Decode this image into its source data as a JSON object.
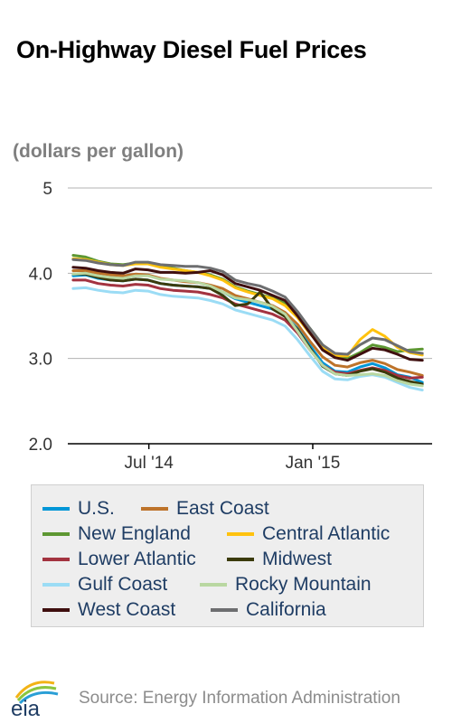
{
  "chart_data": {
    "type": "line",
    "title": "On-Highway Diesel Fuel Prices",
    "ylabel": "(dollars per gallon)",
    "ylim": [
      2.0,
      5.0
    ],
    "yticks": [
      "2.0",
      "3.0",
      "4.0",
      "5"
    ],
    "ytick_values": [
      2.0,
      3.0,
      4.0,
      5.0
    ],
    "xtick_labels": [
      "Jul '14",
      "Jan '15"
    ],
    "xtick_dates": [
      "2014-07-01",
      "2015-01-01"
    ],
    "xlim": [
      "2014-04-01",
      "2015-05-15"
    ],
    "grid": true,
    "legend_placement": "bottom",
    "x": [
      "2014-04-07",
      "2014-04-21",
      "2014-05-05",
      "2014-05-19",
      "2014-06-02",
      "2014-06-16",
      "2014-06-30",
      "2014-07-14",
      "2014-07-28",
      "2014-08-11",
      "2014-08-25",
      "2014-09-08",
      "2014-09-22",
      "2014-10-06",
      "2014-10-20",
      "2014-11-03",
      "2014-11-17",
      "2014-12-01",
      "2014-12-15",
      "2014-12-29",
      "2015-01-12",
      "2015-01-26",
      "2015-02-09",
      "2015-02-23",
      "2015-03-09",
      "2015-03-23",
      "2015-04-06",
      "2015-04-20",
      "2015-05-04"
    ],
    "series": [
      {
        "name": "U.S.",
        "color": "#0096d7",
        "values": [
          3.97,
          3.98,
          3.94,
          3.92,
          3.91,
          3.93,
          3.92,
          3.88,
          3.86,
          3.85,
          3.84,
          3.82,
          3.78,
          3.7,
          3.66,
          3.62,
          3.58,
          3.5,
          3.35,
          3.15,
          2.95,
          2.85,
          2.84,
          2.9,
          2.94,
          2.89,
          2.81,
          2.78,
          2.72
        ]
      },
      {
        "name": "East Coast",
        "color": "#bd732a",
        "values": [
          4.03,
          4.03,
          4.0,
          3.98,
          3.97,
          3.99,
          3.98,
          3.94,
          3.92,
          3.9,
          3.89,
          3.86,
          3.82,
          3.74,
          3.7,
          3.66,
          3.62,
          3.54,
          3.4,
          3.2,
          3.02,
          2.92,
          2.9,
          2.95,
          2.98,
          2.94,
          2.87,
          2.84,
          2.8
        ]
      },
      {
        "name": "New England",
        "color": "#5d9732",
        "values": [
          4.21,
          4.19,
          4.14,
          4.11,
          4.1,
          4.12,
          4.12,
          4.09,
          4.06,
          4.03,
          4.01,
          3.98,
          3.93,
          3.84,
          3.79,
          3.75,
          3.71,
          3.65,
          3.52,
          3.35,
          3.16,
          3.03,
          3.0,
          3.07,
          3.16,
          3.13,
          3.08,
          3.1,
          3.11
        ]
      },
      {
        "name": "Central Atlantic",
        "color": "#ffc20e",
        "values": [
          4.17,
          4.16,
          4.13,
          4.1,
          4.09,
          4.11,
          4.11,
          4.07,
          4.05,
          4.03,
          4.01,
          3.97,
          3.92,
          3.83,
          3.78,
          3.74,
          3.7,
          3.62,
          3.48,
          3.29,
          3.13,
          3.03,
          3.03,
          3.22,
          3.34,
          3.26,
          3.13,
          3.07,
          3.04
        ]
      },
      {
        "name": "Lower Atlantic",
        "color": "#a33340",
        "values": [
          3.92,
          3.92,
          3.88,
          3.86,
          3.85,
          3.87,
          3.86,
          3.82,
          3.8,
          3.79,
          3.78,
          3.75,
          3.71,
          3.64,
          3.6,
          3.56,
          3.52,
          3.45,
          3.3,
          3.1,
          2.92,
          2.84,
          2.82,
          2.86,
          2.89,
          2.86,
          2.8,
          2.77,
          2.78
        ]
      },
      {
        "name": "Midwest",
        "color": "#3b3b0c",
        "values": [
          3.99,
          3.99,
          3.95,
          3.92,
          3.91,
          3.93,
          3.92,
          3.88,
          3.86,
          3.85,
          3.84,
          3.82,
          3.74,
          3.62,
          3.64,
          3.78,
          3.58,
          3.49,
          3.34,
          3.12,
          2.91,
          2.82,
          2.8,
          2.85,
          2.88,
          2.84,
          2.77,
          2.73,
          2.7
        ]
      },
      {
        "name": "Gulf Coast",
        "color": "#9bdcf5",
        "values": [
          3.82,
          3.83,
          3.8,
          3.78,
          3.77,
          3.8,
          3.79,
          3.75,
          3.73,
          3.72,
          3.71,
          3.68,
          3.64,
          3.57,
          3.53,
          3.49,
          3.45,
          3.38,
          3.22,
          3.03,
          2.85,
          2.76,
          2.75,
          2.79,
          2.81,
          2.78,
          2.72,
          2.66,
          2.63
        ]
      },
      {
        "name": "Rocky Mountain",
        "color": "#b9d7a1",
        "values": [
          3.99,
          4.0,
          3.97,
          3.95,
          3.94,
          3.97,
          3.97,
          3.93,
          3.92,
          3.91,
          3.89,
          3.85,
          3.78,
          3.71,
          3.69,
          3.66,
          3.61,
          3.52,
          3.32,
          3.1,
          2.92,
          2.82,
          2.8,
          2.81,
          2.82,
          2.8,
          2.74,
          2.7,
          2.68
        ]
      },
      {
        "name": "West Coast",
        "color": "#3f0f0f",
        "values": [
          4.07,
          4.06,
          4.03,
          4.01,
          4.0,
          4.05,
          4.04,
          4.01,
          4.01,
          4.0,
          4.01,
          4.03,
          3.98,
          3.88,
          3.84,
          3.8,
          3.74,
          3.68,
          3.5,
          3.3,
          3.1,
          3.01,
          2.98,
          3.05,
          3.12,
          3.1,
          3.05,
          2.99,
          2.98
        ]
      },
      {
        "name": "California",
        "color": "#6d6e70",
        "values": [
          4.16,
          4.15,
          4.12,
          4.1,
          4.09,
          4.13,
          4.13,
          4.1,
          4.09,
          4.08,
          4.08,
          4.06,
          4.02,
          3.92,
          3.88,
          3.85,
          3.79,
          3.72,
          3.55,
          3.35,
          3.16,
          3.06,
          3.05,
          3.16,
          3.24,
          3.22,
          3.15,
          3.08,
          3.06
        ]
      }
    ]
  },
  "legend": {
    "items": [
      {
        "label": "U.S.",
        "color": "#0096d7"
      },
      {
        "label": "East Coast",
        "color": "#bd732a"
      },
      {
        "label": "New England",
        "color": "#5d9732"
      },
      {
        "label": "Central Atlantic",
        "color": "#ffc20e"
      },
      {
        "label": "Lower Atlantic",
        "color": "#a33340"
      },
      {
        "label": "Midwest",
        "color": "#3b3b0c"
      },
      {
        "label": "Gulf Coast",
        "color": "#9bdcf5"
      },
      {
        "label": "Rocky Mountain",
        "color": "#b9d7a1"
      },
      {
        "label": "West Coast",
        "color": "#3f0f0f"
      },
      {
        "label": "California",
        "color": "#6d6e70"
      }
    ]
  },
  "footer": {
    "logo_text": "eia",
    "source": "Source: Energy Information Administration"
  }
}
